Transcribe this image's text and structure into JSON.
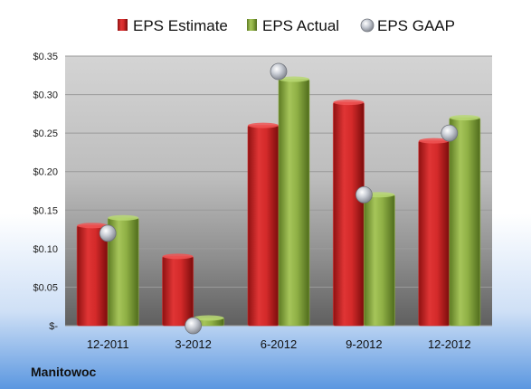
{
  "company": "Manitowoc",
  "colors": {
    "estimate": "#d42a2a",
    "actual": "#8fb045",
    "gaap": "#b8bcc6"
  },
  "chart_data": {
    "type": "bar",
    "categories": [
      "12-2011",
      "3-2012",
      "6-2012",
      "9-2012",
      "12-2012"
    ],
    "series": [
      {
        "name": "EPS Estimate",
        "values": [
          0.13,
          0.09,
          0.26,
          0.29,
          0.24
        ]
      },
      {
        "name": "EPS Actual",
        "values": [
          0.14,
          0.01,
          0.32,
          0.17,
          0.27
        ]
      },
      {
        "name": "EPS GAAP",
        "values": [
          0.12,
          0.0,
          0.33,
          0.17,
          0.25
        ],
        "marker": "circle"
      }
    ],
    "ylim": [
      0,
      0.35
    ],
    "y_ticks": [
      {
        "value": 0,
        "label": "$-"
      },
      {
        "value": 0.05,
        "label": "$0.05"
      },
      {
        "value": 0.1,
        "label": "$0.10"
      },
      {
        "value": 0.15,
        "label": "$0.15"
      },
      {
        "value": 0.2,
        "label": "$0.20"
      },
      {
        "value": 0.25,
        "label": "$0.25"
      },
      {
        "value": 0.3,
        "label": "$0.30"
      },
      {
        "value": 0.35,
        "label": "$0.35"
      }
    ],
    "grid": true,
    "legend_position": "top"
  }
}
